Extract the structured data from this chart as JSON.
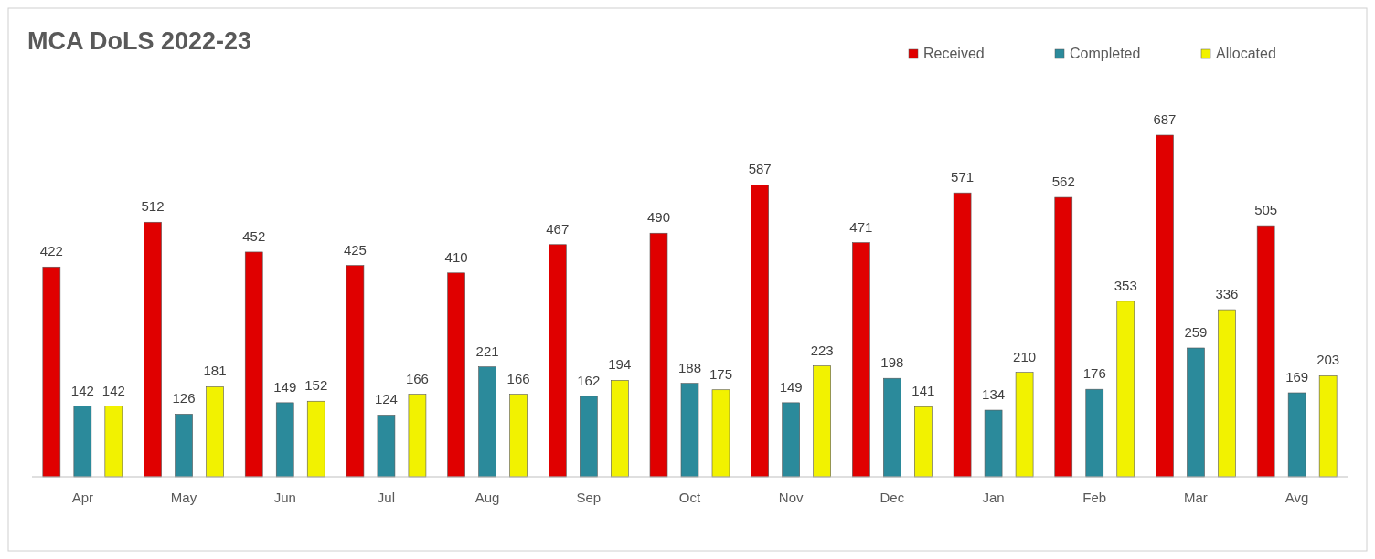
{
  "chart_data": {
    "type": "bar",
    "title": "MCA DoLS 2022-23",
    "categories": [
      "Apr",
      "May",
      "Jun",
      "Jul",
      "Aug",
      "Sep",
      "Oct",
      "Nov",
      "Dec",
      "Jan",
      "Feb",
      "Mar",
      "Avg"
    ],
    "series": [
      {
        "name": "Received",
        "color": "#e00000",
        "values": [
          422,
          512,
          452,
          425,
          410,
          467,
          490,
          587,
          471,
          571,
          562,
          687,
          505
        ]
      },
      {
        "name": "Completed",
        "color": "#2b8a9b",
        "values": [
          142,
          126,
          149,
          124,
          221,
          162,
          188,
          149,
          198,
          134,
          176,
          259,
          169
        ]
      },
      {
        "name": "Allocated",
        "color": "#f2f200",
        "values": [
          142,
          181,
          152,
          166,
          166,
          194,
          175,
          223,
          141,
          210,
          353,
          336,
          203
        ]
      }
    ],
    "data_labels": true,
    "legend": "top right"
  }
}
